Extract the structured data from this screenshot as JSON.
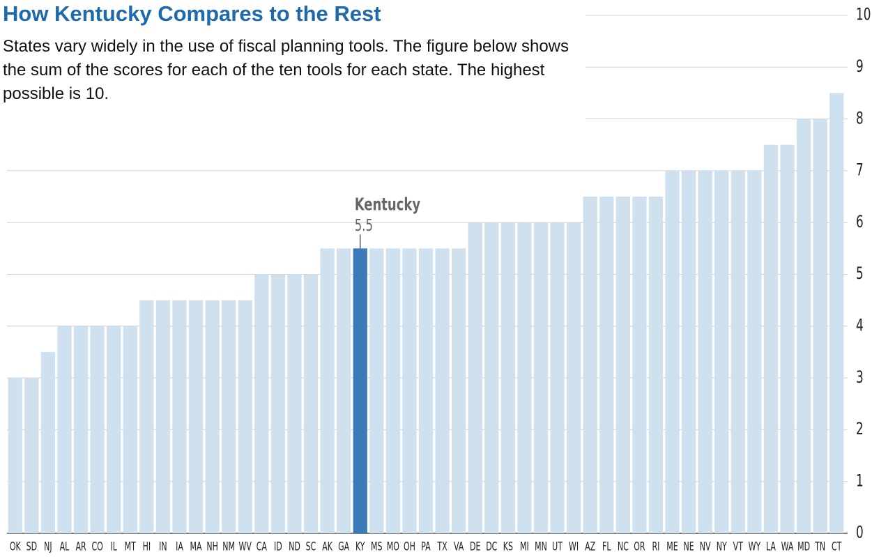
{
  "chart_data": {
    "type": "bar",
    "title": "How Kentucky Compares to the Rest",
    "subtitle": "States vary widely in the use of fiscal planning tools.  The figure below shows the sum of the scores for each of the ten tools for each state.  The highest possible is 10.",
    "categories": [
      "OK",
      "SD",
      "NJ",
      "AL",
      "AR",
      "CO",
      "IL",
      "MT",
      "HI",
      "IN",
      "IA",
      "MA",
      "NH",
      "NM",
      "WV",
      "CA",
      "ID",
      "ND",
      "SC",
      "AK",
      "GA",
      "KY",
      "MS",
      "MO",
      "OH",
      "PA",
      "TX",
      "VA",
      "DE",
      "DC",
      "KS",
      "MI",
      "MN",
      "UT",
      "WI",
      "AZ",
      "FL",
      "NC",
      "OR",
      "RI",
      "ME",
      "NE",
      "NV",
      "NY",
      "VT",
      "WY",
      "LA",
      "WA",
      "MD",
      "TN",
      "CT"
    ],
    "values": [
      3,
      3,
      3.5,
      4,
      4,
      4,
      4,
      4,
      4.5,
      4.5,
      4.5,
      4.5,
      4.5,
      4.5,
      4.5,
      5,
      5,
      5,
      5,
      5.5,
      5.5,
      5.5,
      5.5,
      5.5,
      5.5,
      5.5,
      5.5,
      5.5,
      6,
      6,
      6,
      6,
      6,
      6,
      6,
      6.5,
      6.5,
      6.5,
      6.5,
      6.5,
      7,
      7,
      7,
      7,
      7,
      7,
      7.5,
      7.5,
      8,
      8,
      8.5
    ],
    "color": "#cfe0ef",
    "highlight": "KY",
    "highlight_color": "#3a7ab8",
    "annotation": "Kentucky",
    "ylim": [
      0,
      10
    ],
    "yticks": [
      0,
      1,
      2,
      3,
      4,
      5,
      6,
      7,
      8,
      9,
      10
    ],
    "grid": true
  }
}
